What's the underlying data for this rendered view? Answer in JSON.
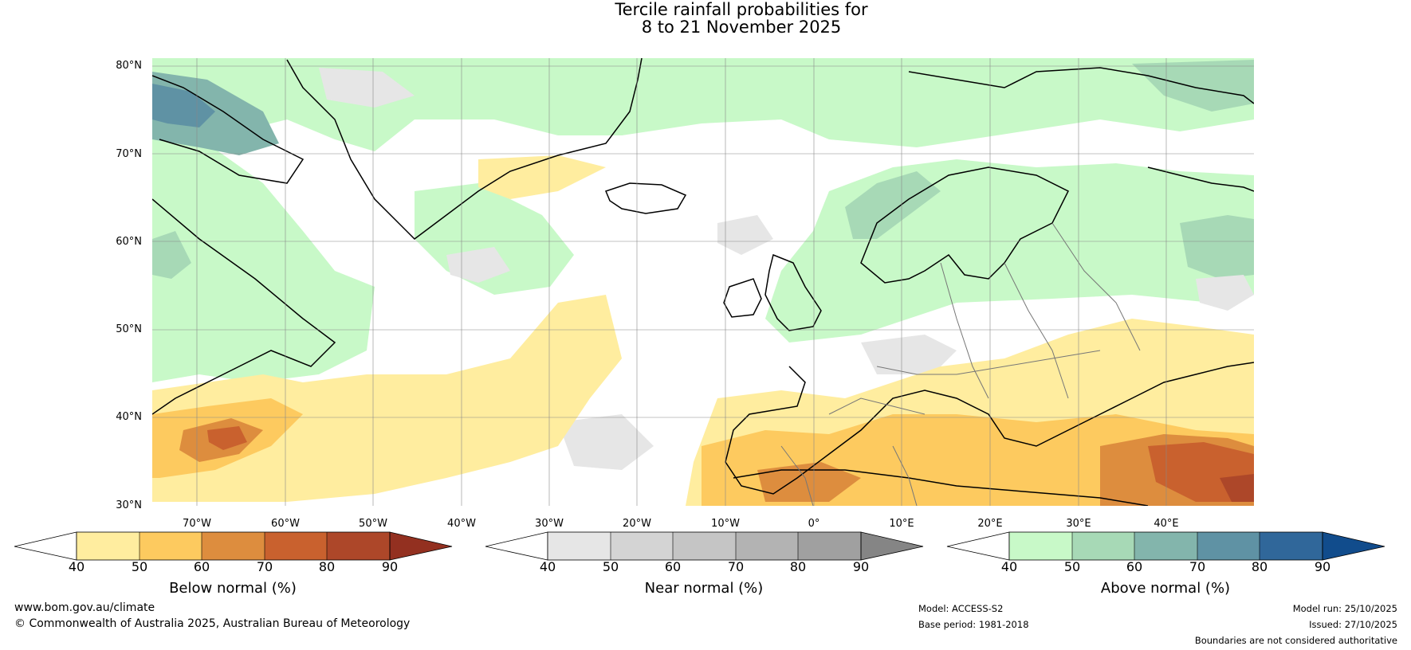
{
  "title": {
    "line1": "Tercile rainfall probabilities for",
    "line2": "8 to 21 November 2025"
  },
  "map": {
    "latitude_labels": [
      "80°N",
      "70°N",
      "60°N",
      "50°N",
      "40°N",
      "30°N"
    ],
    "longitude_labels": [
      "70°W",
      "60°W",
      "50°W",
      "40°W",
      "30°W",
      "20°W",
      "10°W",
      "0°",
      "10°E",
      "20°E",
      "30°E",
      "40°E"
    ]
  },
  "colorbars": [
    {
      "label": "Below normal (%)",
      "ticks": [
        "40",
        "50",
        "60",
        "70",
        "80",
        "90"
      ],
      "colors": [
        "#ffffff",
        "#ffed9f",
        "#fdca5f",
        "#dd8d3e",
        "#c9612e",
        "#ad4729",
        "#933020"
      ]
    },
    {
      "label": "Near normal (%)",
      "ticks": [
        "40",
        "50",
        "60",
        "70",
        "80",
        "90"
      ],
      "colors": [
        "#ffffff",
        "#e6e6e6",
        "#d4d4d4",
        "#c5c5c5",
        "#b3b3b3",
        "#a0a0a0",
        "#858585"
      ]
    },
    {
      "label": "Above normal (%)",
      "ticks": [
        "40",
        "50",
        "60",
        "70",
        "80",
        "90"
      ],
      "colors": [
        "#ffffff",
        "#c8f9c8",
        "#a7d9b6",
        "#83b5ac",
        "#5f92a4",
        "#30679a",
        "#114c8c"
      ]
    }
  ],
  "footer": {
    "website": "www.bom.gov.au/climate",
    "copyright": "© Commonwealth of Australia 2025, Australian Bureau of Meteorology",
    "model": "Model: ACCESS-S2",
    "base_period": "Base period: 1981-2018",
    "model_run": "Model run: 25/10/2025",
    "issued": "Issued: 27/10/2025",
    "disclaimer": "Boundaries are not considered authoritative"
  }
}
